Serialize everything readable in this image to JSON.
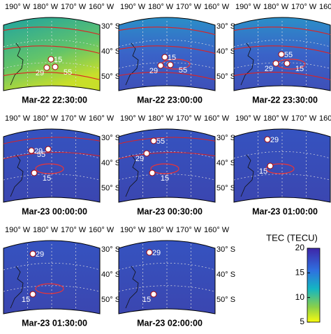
{
  "panels": [
    {
      "time": "Mar-22 22:30:00",
      "stations": [
        "15",
        "29",
        "55"
      ]
    },
    {
      "time": "Mar-22 23:00:00",
      "stations": [
        "15",
        "29",
        "55"
      ]
    },
    {
      "time": "Mar-22 23:30:00",
      "stations": [
        "55",
        "29",
        "15"
      ]
    },
    {
      "time": "Mar-23 00:00:00",
      "stations": [
        "29",
        "55",
        "15"
      ]
    },
    {
      "time": "Mar-23 00:30:00",
      "stations": [
        "55",
        "29",
        "15"
      ]
    },
    {
      "time": "Mar-23 01:00:00",
      "stations": [
        "29",
        "15"
      ]
    },
    {
      "time": "Mar-23 01:30:00",
      "stations": [
        "29",
        "15"
      ]
    },
    {
      "time": "Mar-23 02:00:00",
      "stations": [
        "29",
        "15"
      ]
    }
  ],
  "lon_labels": [
    "190° W",
    "180° W",
    "170° W",
    "160° W"
  ],
  "lat_labels": [
    "30° S",
    "40° S",
    "50° S"
  ],
  "colorbar": {
    "label": "TEC (TECU)",
    "lim": [
      5,
      20
    ],
    "ticks": [
      5,
      10,
      15,
      20
    ]
  }
}
